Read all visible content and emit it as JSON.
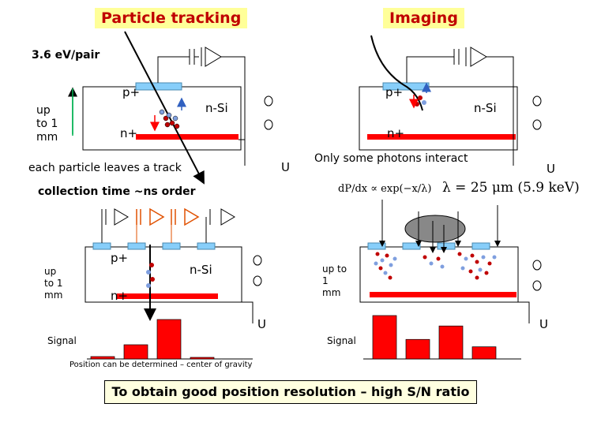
{
  "titles": {
    "particle_tracking": "Particle tracking",
    "imaging": "Imaging"
  },
  "labels": {
    "ev_pair": "3.6 eV/pair",
    "up_to_1_mm_a": "up\nto 1\nmm",
    "p_plus": "p+",
    "n_plus": "n+",
    "n_si": "n-Si",
    "u": "U",
    "each_particle": "each particle leaves a track",
    "only_some": "Only some photons interact",
    "collection_time": "collection time ~ns order",
    "up_to_1_mm_b": "up\nto 1\nmm",
    "up_to_1_mm_c": "up to\n1\nmm",
    "signal": "Signal",
    "position_note": "Position can be determined – center of gravity",
    "conclusion": "To obtain good position resolution – high S/N ratio"
  },
  "formulas": {
    "absorption": "dP/dx ∝ exp(−x/λ)",
    "lambda": "λ = 25 μm (5.9 keV)"
  },
  "colors": {
    "p_layer": "#87cefa",
    "n_layer": "#ff0000",
    "signal_bar": "#ff0000",
    "banner_bg": "#ffff99",
    "banner_text": "#c00000",
    "highlight_amp": "#e05000",
    "electron": "#c00000",
    "hole": "#7f9fdf"
  },
  "signals": {
    "tracking": [
      0.06,
      0.36,
      1.0,
      0.02
    ],
    "imaging": [
      1.0,
      0.45,
      0.76,
      0.28
    ]
  }
}
